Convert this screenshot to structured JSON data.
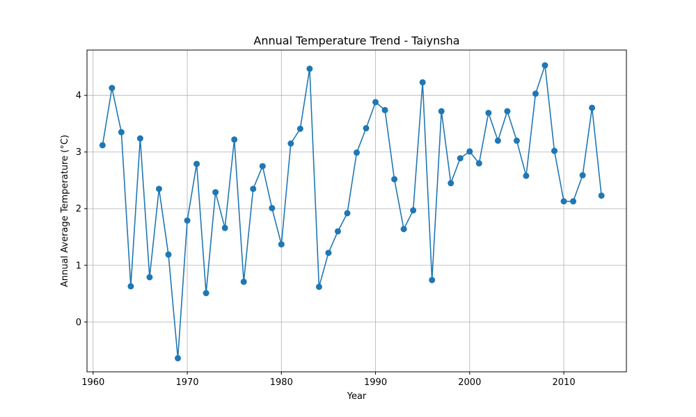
{
  "chart_data": {
    "type": "line",
    "title": "Annual Temperature Trend - Taiynsha",
    "xlabel": "Year",
    "ylabel": "Annual Average Temperature (°C)",
    "xlim": [
      1959.35,
      2016.65
    ],
    "ylim": [
      -0.88,
      4.8
    ],
    "x_ticks": [
      1960,
      1970,
      1980,
      1990,
      2000,
      2010
    ],
    "y_ticks": [
      0,
      1,
      2,
      3,
      4
    ],
    "grid": true,
    "legend": "none",
    "series": [
      {
        "color": "#1f77b4",
        "marker": "circle",
        "x": [
          1961,
          1962,
          1963,
          1964,
          1965,
          1966,
          1967,
          1968,
          1969,
          1970,
          1971,
          1972,
          1973,
          1974,
          1975,
          1976,
          1977,
          1978,
          1979,
          1980,
          1981,
          1982,
          1983,
          1984,
          1985,
          1986,
          1987,
          1988,
          1989,
          1990,
          1991,
          1992,
          1993,
          1994,
          1995,
          1996,
          1997,
          1998,
          1999,
          2000,
          2001,
          2002,
          2003,
          2004,
          2005,
          2006,
          2007,
          2008,
          2009,
          2010,
          2011,
          2012,
          2013,
          2014
        ],
        "y": [
          3.12,
          4.13,
          3.35,
          0.63,
          3.24,
          0.79,
          2.35,
          1.19,
          -0.64,
          1.79,
          2.79,
          0.51,
          2.29,
          1.66,
          3.22,
          0.71,
          2.35,
          2.75,
          2.01,
          1.37,
          3.15,
          3.41,
          4.47,
          0.62,
          1.22,
          1.6,
          1.92,
          2.99,
          3.42,
          3.88,
          3.74,
          2.52,
          1.64,
          1.97,
          4.23,
          0.74,
          3.72,
          2.45,
          2.89,
          3.01,
          2.8,
          3.69,
          3.2,
          3.72,
          3.2,
          2.58,
          4.03,
          4.53,
          3.02,
          2.13,
          2.13,
          2.59,
          3.78,
          2.23
        ]
      }
    ]
  }
}
